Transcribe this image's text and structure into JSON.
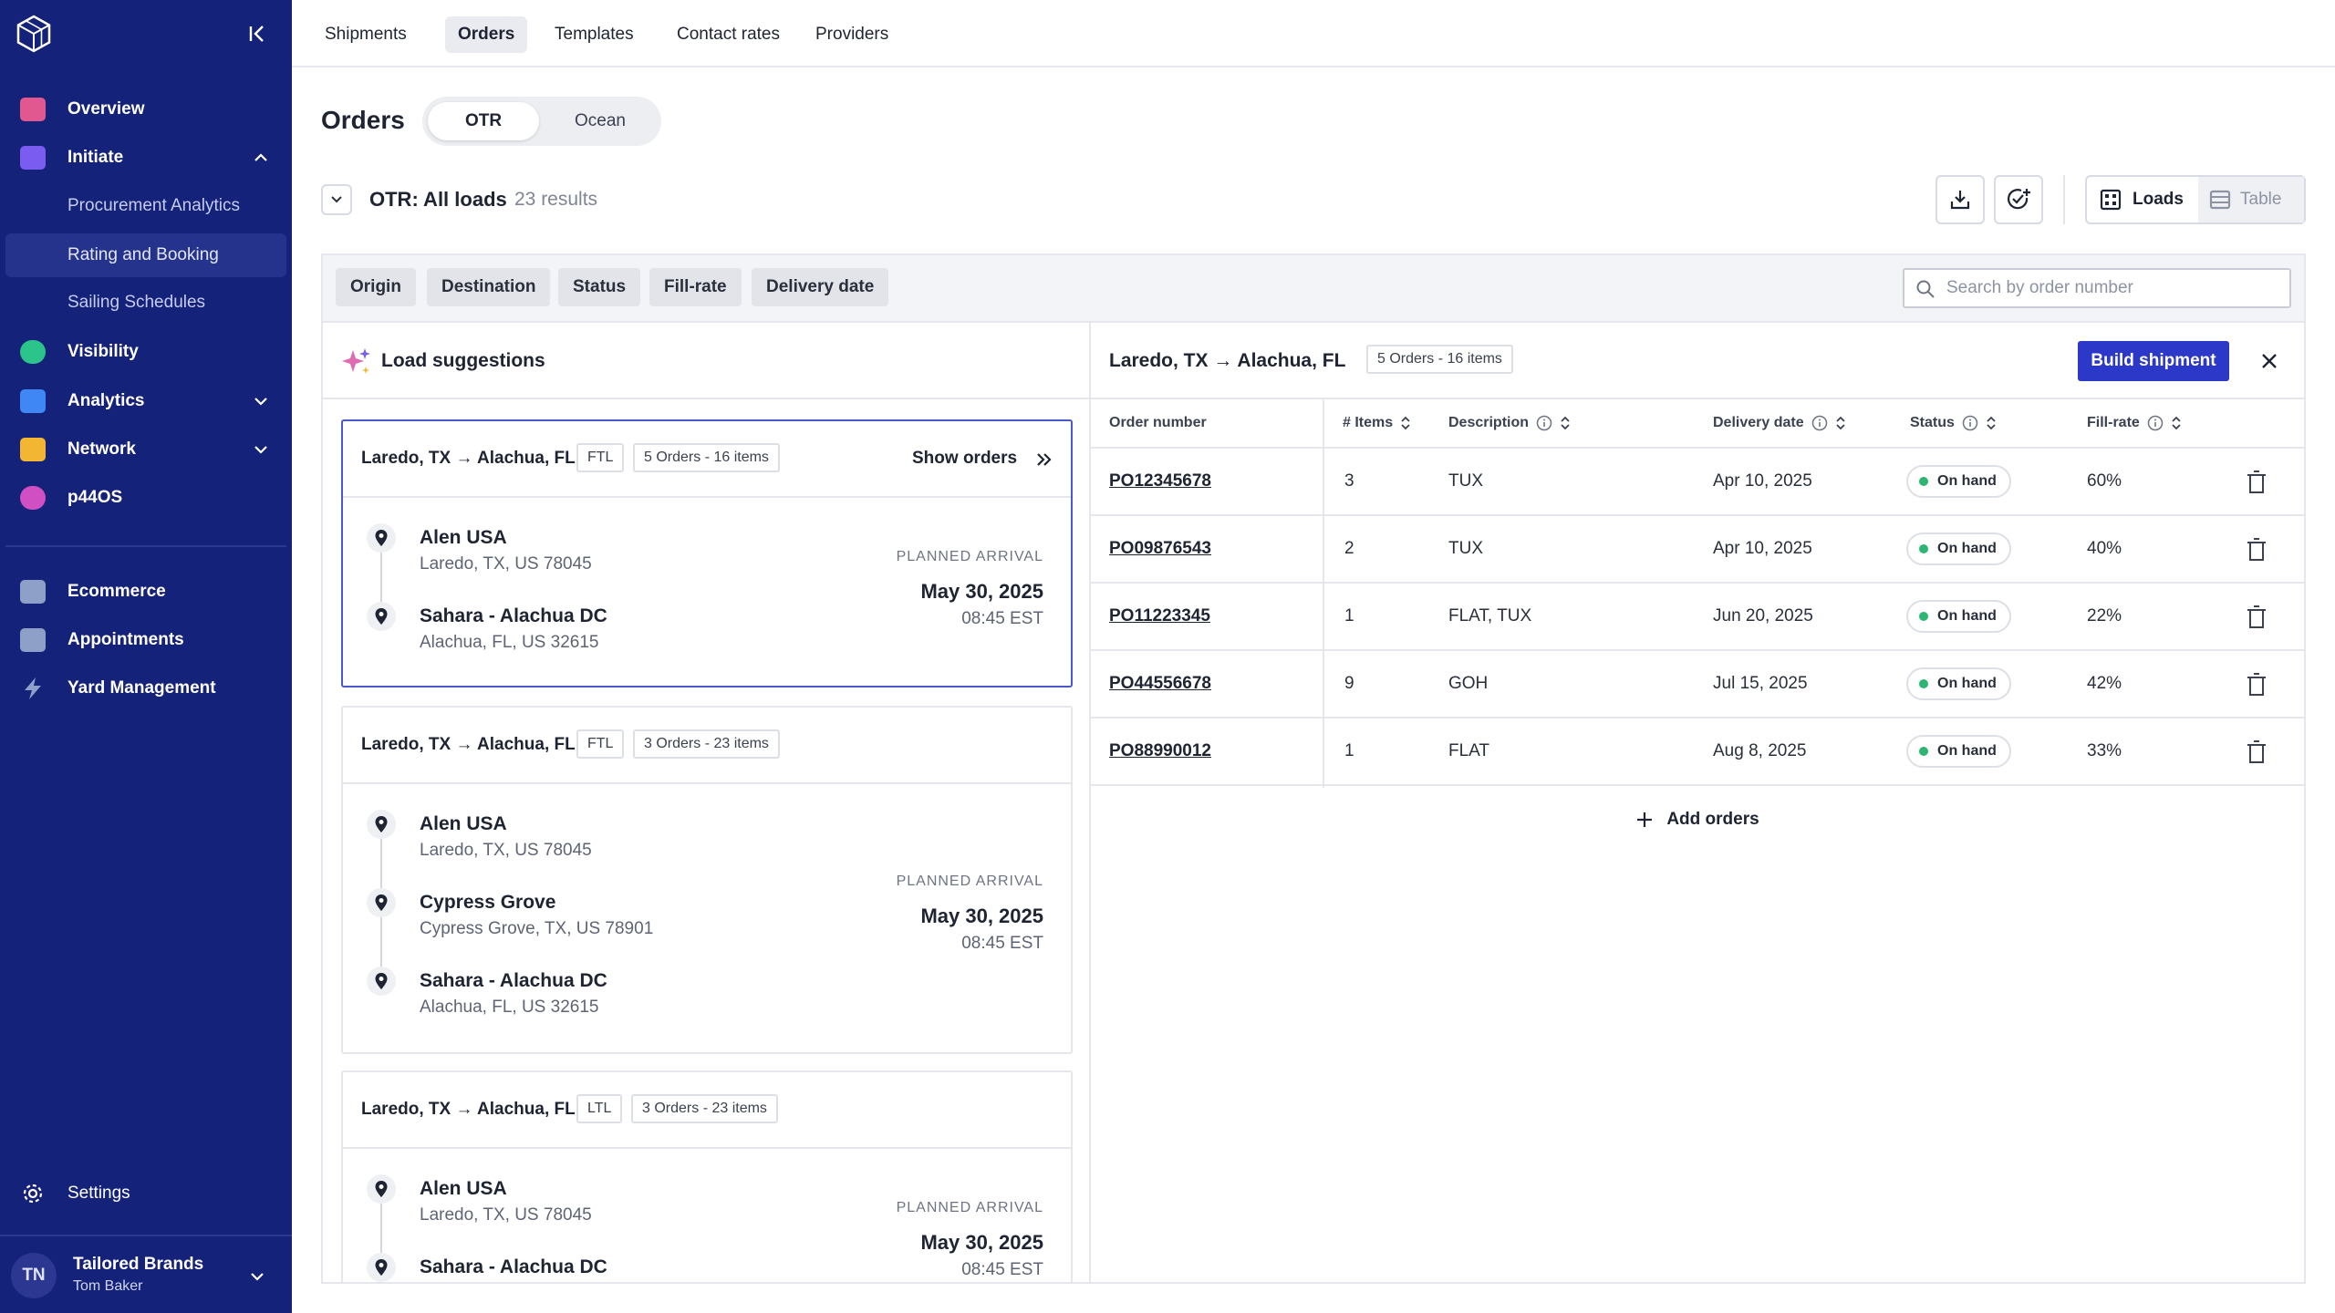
{
  "sidebar": {
    "nav": [
      {
        "label": "Overview",
        "icon": "overview-icon",
        "color": "#e0588f"
      },
      {
        "label": "Initiate",
        "icon": "initiate-icon",
        "color": "#7a5cf0"
      },
      {
        "label": "Visibility",
        "icon": "visibility-icon",
        "color": "#2bc48a"
      },
      {
        "label": "Analytics",
        "icon": "analytics-icon",
        "color": "#3e87f5"
      },
      {
        "label": "Network",
        "icon": "network-icon",
        "color": "#f2b632"
      },
      {
        "label": "p44OS",
        "icon": "p44os-icon",
        "color": "#d04fc2"
      },
      {
        "label": "Ecommerce",
        "icon": "ecommerce-icon",
        "color": "#8fa0c8"
      },
      {
        "label": "Appointments",
        "icon": "appointments-icon",
        "color": "#8fa0c8"
      },
      {
        "label": "Yard Management",
        "icon": "yard-icon",
        "color": "#8fa0c8"
      }
    ],
    "sub_items": [
      "Procurement Analytics",
      "Rating and Booking",
      "Sailing Schedules"
    ],
    "settings_label": "Settings",
    "user": {
      "initials": "TN",
      "org": "Tailored Brands",
      "name": "Tom Baker"
    }
  },
  "top_tabs": [
    "Shipments",
    "Orders",
    "Templates",
    "Contact rates",
    "Providers"
  ],
  "header": {
    "title": "Orders",
    "modes": [
      "OTR",
      "Ocean"
    ],
    "view_title": "OTR: All loads",
    "result_count": "23 results",
    "view_switch": {
      "loads": "Loads",
      "table": "Table"
    }
  },
  "filters": {
    "chips": [
      "Origin",
      "Destination",
      "Status",
      "Fill-rate",
      "Delivery date"
    ],
    "search_placeholder": "Search by order number"
  },
  "suggestions": {
    "title": "Load suggestions",
    "show_orders_label": "Show orders",
    "planned_arrival_label": "PLANNED ARRIVAL",
    "cards": [
      {
        "route": "Laredo, TX → Alachua, FL",
        "mode": "FTL",
        "summary": "5 Orders - 16 items",
        "date": "May 30, 2025",
        "time": "08:45 EST",
        "stops": [
          {
            "name": "Alen USA",
            "address": "Laredo, TX, US 78045"
          },
          {
            "name": "Sahara - Alachua DC",
            "address": "Alachua, FL, US 32615"
          }
        ]
      },
      {
        "route": "Laredo, TX → Alachua, FL",
        "mode": "FTL",
        "summary": "3 Orders - 23 items",
        "date": "May 30, 2025",
        "time": "08:45 EST",
        "stops": [
          {
            "name": "Alen USA",
            "address": "Laredo, TX, US 78045"
          },
          {
            "name": "Cypress Grove",
            "address": "Cypress Grove, TX, US 78901"
          },
          {
            "name": "Sahara - Alachua DC",
            "address": "Alachua, FL, US 32615"
          }
        ]
      },
      {
        "route": "Laredo, TX → Alachua, FL",
        "mode": "LTL",
        "summary": "3 Orders - 23 items",
        "date": "May 30, 2025",
        "time": "08:45 EST",
        "stops": [
          {
            "name": "Alen USA",
            "address": "Laredo, TX, US 78045"
          },
          {
            "name": "Sahara - Alachua DC",
            "address": ""
          }
        ]
      }
    ]
  },
  "detail": {
    "route": "Laredo, TX → Alachua, FL",
    "summary": "5 Orders - 16 items",
    "build_label": "Build shipment",
    "columns": [
      "Order number",
      "# Items",
      "Description",
      "Delivery date",
      "Status",
      "Fill-rate"
    ],
    "rows": [
      {
        "order": "PO12345678",
        "items": "3",
        "description": "TUX",
        "delivery": "Apr 10, 2025",
        "status": "On hand",
        "fill": "60%"
      },
      {
        "order": "PO09876543",
        "items": "2",
        "description": "TUX",
        "delivery": "Apr 10, 2025",
        "status": "On hand",
        "fill": "40%"
      },
      {
        "order": "PO11223345",
        "items": "1",
        "description": "FLAT, TUX",
        "delivery": "Jun 20, 2025",
        "status": "On hand",
        "fill": "22%"
      },
      {
        "order": "PO44556678",
        "items": "9",
        "description": "GOH",
        "delivery": "Jul 15, 2025",
        "status": "On hand",
        "fill": "42%"
      },
      {
        "order": "PO88990012",
        "items": "1",
        "description": "FLAT",
        "delivery": "Aug 8, 2025",
        "status": "On hand",
        "fill": "33%"
      }
    ],
    "add_label": "Add orders"
  }
}
